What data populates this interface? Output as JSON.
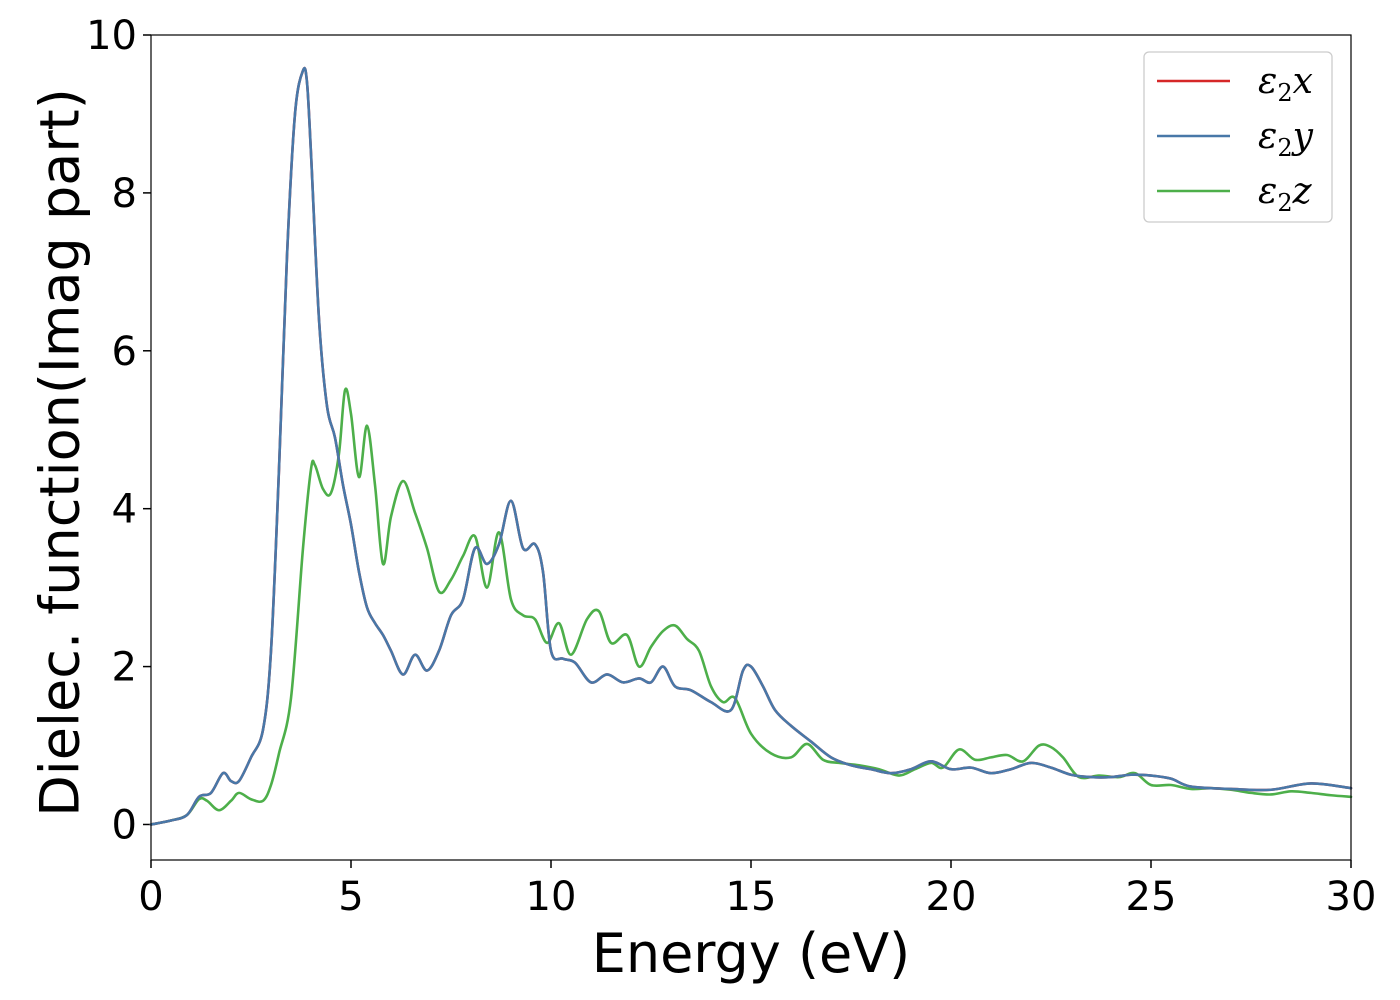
{
  "chart_data": {
    "type": "line",
    "xlabel": "Energy (eV)",
    "ylabel": "Dielec. function(Imag part)",
    "xlim": [
      0,
      30
    ],
    "ylim": [
      -0.45,
      10
    ],
    "xticks": [
      "0",
      "5",
      "10",
      "15",
      "20",
      "25",
      "30"
    ],
    "yticks": [
      "0",
      "2",
      "4",
      "6",
      "8",
      "10"
    ],
    "grid": false,
    "legend_position": "top-right",
    "series": [
      {
        "name": "ε₂x",
        "legend": {
          "base": "ε",
          "sub": "2",
          "suffix": "x"
        },
        "color": "#d62728",
        "x": [
          0,
          0.5,
          0.9,
          1.2,
          1.5,
          1.8,
          2.0,
          2.2,
          2.5,
          2.8,
          3.0,
          3.2,
          3.4,
          3.6,
          3.8,
          3.9,
          4.0,
          4.2,
          4.4,
          4.6,
          4.8,
          5.0,
          5.2,
          5.4,
          5.6,
          5.8,
          6.0,
          6.3,
          6.6,
          6.9,
          7.2,
          7.5,
          7.8,
          8.1,
          8.4,
          8.7,
          9.0,
          9.3,
          9.6,
          9.8,
          10.0,
          10.3,
          10.6,
          11.0,
          11.4,
          11.8,
          12.2,
          12.5,
          12.8,
          13.1,
          13.5,
          14.0,
          14.5,
          14.8,
          15.0,
          15.3,
          15.6,
          16.0,
          16.5,
          17.0,
          17.5,
          18.0,
          18.5,
          19.0,
          19.5,
          20.0,
          20.5,
          21.0,
          21.5,
          22.0,
          22.5,
          23.0,
          23.5,
          24.0,
          24.5,
          25.0,
          25.5,
          26.0,
          27.0,
          28.0,
          29.0,
          30.0
        ],
        "values": [
          0,
          0.05,
          0.12,
          0.35,
          0.4,
          0.65,
          0.55,
          0.55,
          0.85,
          1.2,
          2.2,
          4.5,
          7.2,
          9.0,
          9.55,
          9.4,
          8.5,
          6.4,
          5.3,
          4.9,
          4.3,
          3.8,
          3.2,
          2.75,
          2.55,
          2.4,
          2.2,
          1.9,
          2.15,
          1.95,
          2.2,
          2.65,
          2.85,
          3.5,
          3.3,
          3.55,
          4.1,
          3.5,
          3.55,
          3.2,
          2.2,
          2.1,
          2.05,
          1.8,
          1.9,
          1.8,
          1.85,
          1.8,
          2.0,
          1.75,
          1.7,
          1.55,
          1.45,
          1.95,
          2.0,
          1.75,
          1.45,
          1.25,
          1.05,
          0.85,
          0.75,
          0.7,
          0.65,
          0.7,
          0.8,
          0.7,
          0.72,
          0.65,
          0.7,
          0.78,
          0.72,
          0.63,
          0.6,
          0.6,
          0.63,
          0.62,
          0.58,
          0.48,
          0.45,
          0.44,
          0.52,
          0.46
        ]
      },
      {
        "name": "ε₂y",
        "legend": {
          "base": "ε",
          "sub": "2",
          "suffix": "y"
        },
        "color": "#4878a8",
        "x": [
          0,
          0.5,
          0.9,
          1.2,
          1.5,
          1.8,
          2.0,
          2.2,
          2.5,
          2.8,
          3.0,
          3.2,
          3.4,
          3.6,
          3.8,
          3.9,
          4.0,
          4.2,
          4.4,
          4.6,
          4.8,
          5.0,
          5.2,
          5.4,
          5.6,
          5.8,
          6.0,
          6.3,
          6.6,
          6.9,
          7.2,
          7.5,
          7.8,
          8.1,
          8.4,
          8.7,
          9.0,
          9.3,
          9.6,
          9.8,
          10.0,
          10.3,
          10.6,
          11.0,
          11.4,
          11.8,
          12.2,
          12.5,
          12.8,
          13.1,
          13.5,
          14.0,
          14.5,
          14.8,
          15.0,
          15.3,
          15.6,
          16.0,
          16.5,
          17.0,
          17.5,
          18.0,
          18.5,
          19.0,
          19.5,
          20.0,
          20.5,
          21.0,
          21.5,
          22.0,
          22.5,
          23.0,
          23.5,
          24.0,
          24.5,
          25.0,
          25.5,
          26.0,
          27.0,
          28.0,
          29.0,
          30.0
        ],
        "values": [
          0,
          0.05,
          0.12,
          0.35,
          0.4,
          0.65,
          0.55,
          0.55,
          0.85,
          1.2,
          2.2,
          4.5,
          7.2,
          9.0,
          9.55,
          9.4,
          8.5,
          6.4,
          5.3,
          4.9,
          4.3,
          3.8,
          3.2,
          2.75,
          2.55,
          2.4,
          2.2,
          1.9,
          2.15,
          1.95,
          2.2,
          2.65,
          2.85,
          3.5,
          3.3,
          3.55,
          4.1,
          3.5,
          3.55,
          3.2,
          2.2,
          2.1,
          2.05,
          1.8,
          1.9,
          1.8,
          1.85,
          1.8,
          2.0,
          1.75,
          1.7,
          1.55,
          1.45,
          1.95,
          2.0,
          1.75,
          1.45,
          1.25,
          1.05,
          0.85,
          0.75,
          0.7,
          0.65,
          0.7,
          0.8,
          0.7,
          0.72,
          0.65,
          0.7,
          0.78,
          0.72,
          0.63,
          0.6,
          0.6,
          0.63,
          0.62,
          0.58,
          0.48,
          0.45,
          0.44,
          0.52,
          0.46
        ]
      },
      {
        "name": "ε₂z",
        "legend": {
          "base": "ε",
          "sub": "2",
          "suffix": "z"
        },
        "color": "#4daf4a",
        "x": [
          0,
          0.5,
          0.9,
          1.2,
          1.4,
          1.7,
          2.0,
          2.2,
          2.5,
          2.8,
          3.0,
          3.2,
          3.5,
          3.8,
          4.0,
          4.1,
          4.3,
          4.5,
          4.7,
          4.85,
          5.0,
          5.2,
          5.4,
          5.6,
          5.8,
          6.0,
          6.3,
          6.6,
          6.9,
          7.2,
          7.5,
          7.8,
          8.1,
          8.4,
          8.7,
          9.0,
          9.3,
          9.6,
          9.9,
          10.2,
          10.5,
          10.9,
          11.2,
          11.5,
          11.9,
          12.2,
          12.5,
          12.8,
          13.1,
          13.4,
          13.7,
          14.0,
          14.3,
          14.6,
          15.0,
          15.5,
          16.0,
          16.4,
          16.8,
          17.2,
          17.7,
          18.2,
          18.7,
          19.1,
          19.5,
          19.8,
          20.2,
          20.6,
          21.0,
          21.4,
          21.8,
          22.2,
          22.5,
          22.8,
          23.2,
          23.7,
          24.2,
          24.6,
          25.0,
          25.5,
          26.0,
          26.5,
          27.0,
          27.5,
          28.0,
          28.5,
          29.0,
          29.5,
          30.0
        ],
        "values": [
          0,
          0.05,
          0.12,
          0.32,
          0.3,
          0.18,
          0.3,
          0.4,
          0.32,
          0.3,
          0.5,
          0.9,
          1.6,
          3.5,
          4.5,
          4.55,
          4.25,
          4.2,
          4.7,
          5.5,
          5.2,
          4.4,
          5.05,
          4.3,
          3.3,
          3.9,
          4.35,
          3.95,
          3.5,
          2.95,
          3.1,
          3.4,
          3.65,
          3.0,
          3.7,
          2.85,
          2.65,
          2.6,
          2.3,
          2.55,
          2.15,
          2.6,
          2.7,
          2.3,
          2.4,
          2.0,
          2.25,
          2.45,
          2.52,
          2.35,
          2.2,
          1.75,
          1.55,
          1.6,
          1.15,
          0.9,
          0.85,
          1.02,
          0.82,
          0.78,
          0.75,
          0.7,
          0.62,
          0.7,
          0.78,
          0.72,
          0.95,
          0.82,
          0.85,
          0.88,
          0.8,
          1.0,
          0.98,
          0.85,
          0.6,
          0.62,
          0.6,
          0.65,
          0.5,
          0.5,
          0.45,
          0.46,
          0.44,
          0.4,
          0.38,
          0.42,
          0.4,
          0.37,
          0.35
        ]
      }
    ]
  }
}
